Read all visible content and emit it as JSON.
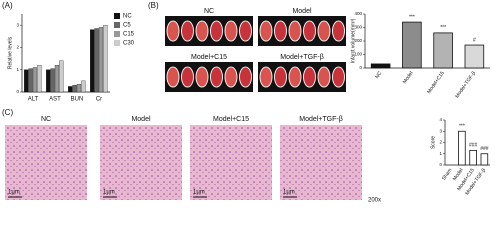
{
  "panel_labels": [
    "(A)",
    "(B)",
    "(C)"
  ],
  "images": {
    "b_titles": [
      "NC",
      "Model",
      "Model+C15",
      "Model+TGF-β"
    ],
    "c_titles": [
      "NC",
      "Model",
      "Model+C15",
      "Model+TGF-β"
    ],
    "scale_bar": "1μm",
    "magnification": "200x"
  },
  "chart_data": [
    {
      "type": "grouped-bar",
      "ylabel": "Relative levels",
      "categories": [
        "ALT",
        "AST",
        "BUN",
        "Cr"
      ],
      "series": [
        {
          "name": "NC",
          "color": "#111111",
          "values": [
            1.0,
            1.0,
            0.25,
            2.8
          ]
        },
        {
          "name": "C5",
          "color": "#666666",
          "values": [
            1.05,
            1.05,
            0.3,
            2.85
          ]
        },
        {
          "name": "C15",
          "color": "#999999",
          "values": [
            1.1,
            1.2,
            0.35,
            2.9
          ]
        },
        {
          "name": "C30",
          "color": "#cccccc",
          "values": [
            1.2,
            1.4,
            0.5,
            3.0
          ]
        }
      ],
      "ylim": [
        0,
        3.5
      ],
      "yticks": [
        0,
        1,
        2,
        3
      ],
      "legend": "right"
    },
    {
      "type": "bar",
      "ylabel": "Infarct volume(mm³)",
      "categories": [
        "NC",
        "Model",
        "Model+C15",
        "Model+TGF-β"
      ],
      "values": [
        30,
        340,
        260,
        170
      ],
      "colors": [
        "#111111",
        "#8c8c8c",
        "#b3b3b3",
        "#d9d9d9"
      ],
      "annotations": [
        null,
        "***",
        "***",
        "#"
      ],
      "ylim": [
        0,
        400
      ],
      "yticks": [
        0,
        100,
        200,
        300,
        400
      ]
    },
    {
      "type": "bar",
      "ylabel": "Score",
      "categories": [
        "Sham",
        "Model",
        "Model+C15",
        "Model+TGF-β"
      ],
      "values": [
        0,
        3,
        1.3,
        1
      ],
      "colors": [
        "#ffffff",
        "#ffffff",
        "#ffffff",
        "#ffffff"
      ],
      "annotations": [
        null,
        "***",
        "###",
        "###"
      ],
      "ylim": [
        0,
        4
      ],
      "yticks": [
        0,
        1,
        2,
        3,
        4
      ]
    }
  ]
}
